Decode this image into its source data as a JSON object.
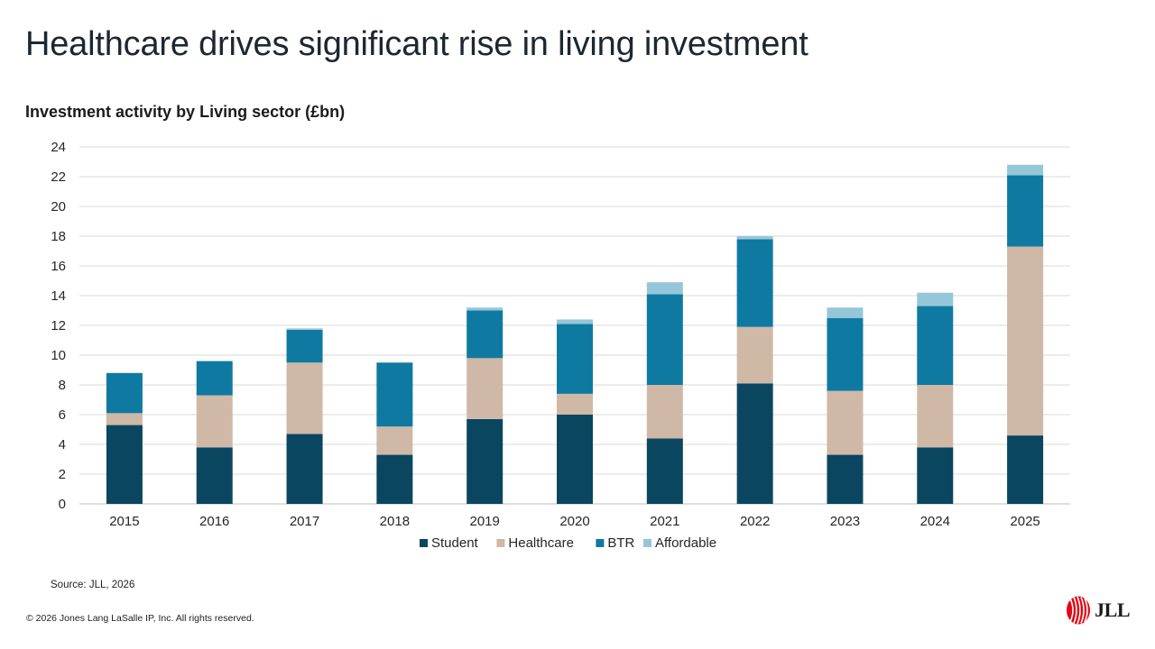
{
  "slide": {
    "title": "Healthcare drives significant rise in living investment",
    "source": "Source: JLL, 2026",
    "copyright": "© 2026 Jones Lang LaSalle IP, Inc. All rights reserved.",
    "logo_text": "JLL"
  },
  "colors": {
    "Student": "#0b4660",
    "Healthcare": "#cfb8a6",
    "BTR": "#0f7aa1",
    "Affordable": "#96c7d8",
    "grid": "#d9d9d9",
    "logo_red": "#e30613"
  },
  "chart_data": {
    "type": "bar",
    "stacked": true,
    "title": "Investment activity by Living sector (£bn)",
    "xlabel": "",
    "ylabel": "",
    "ylim": [
      0,
      24
    ],
    "yticks": [
      0,
      2,
      4,
      6,
      8,
      10,
      12,
      14,
      16,
      18,
      20,
      22,
      24
    ],
    "grid": true,
    "legend_position": "bottom",
    "categories": [
      "2015",
      "2016",
      "2017",
      "2018",
      "2019",
      "2020",
      "2021",
      "2022",
      "2023",
      "2024",
      "2025"
    ],
    "series": [
      {
        "name": "Student",
        "values": [
          5.3,
          3.8,
          4.7,
          3.3,
          5.7,
          6.0,
          4.4,
          8.1,
          3.3,
          3.8,
          4.6
        ]
      },
      {
        "name": "Healthcare",
        "values": [
          0.8,
          3.5,
          4.8,
          1.9,
          4.1,
          1.4,
          3.6,
          3.8,
          4.3,
          4.2,
          12.7
        ]
      },
      {
        "name": "BTR",
        "values": [
          2.7,
          2.3,
          2.2,
          4.3,
          3.2,
          4.7,
          6.1,
          5.9,
          4.9,
          5.3,
          4.8
        ]
      },
      {
        "name": "Affordable",
        "values": [
          0.0,
          0.0,
          0.1,
          0.0,
          0.2,
          0.3,
          0.8,
          0.2,
          0.7,
          0.9,
          0.7
        ]
      }
    ]
  }
}
